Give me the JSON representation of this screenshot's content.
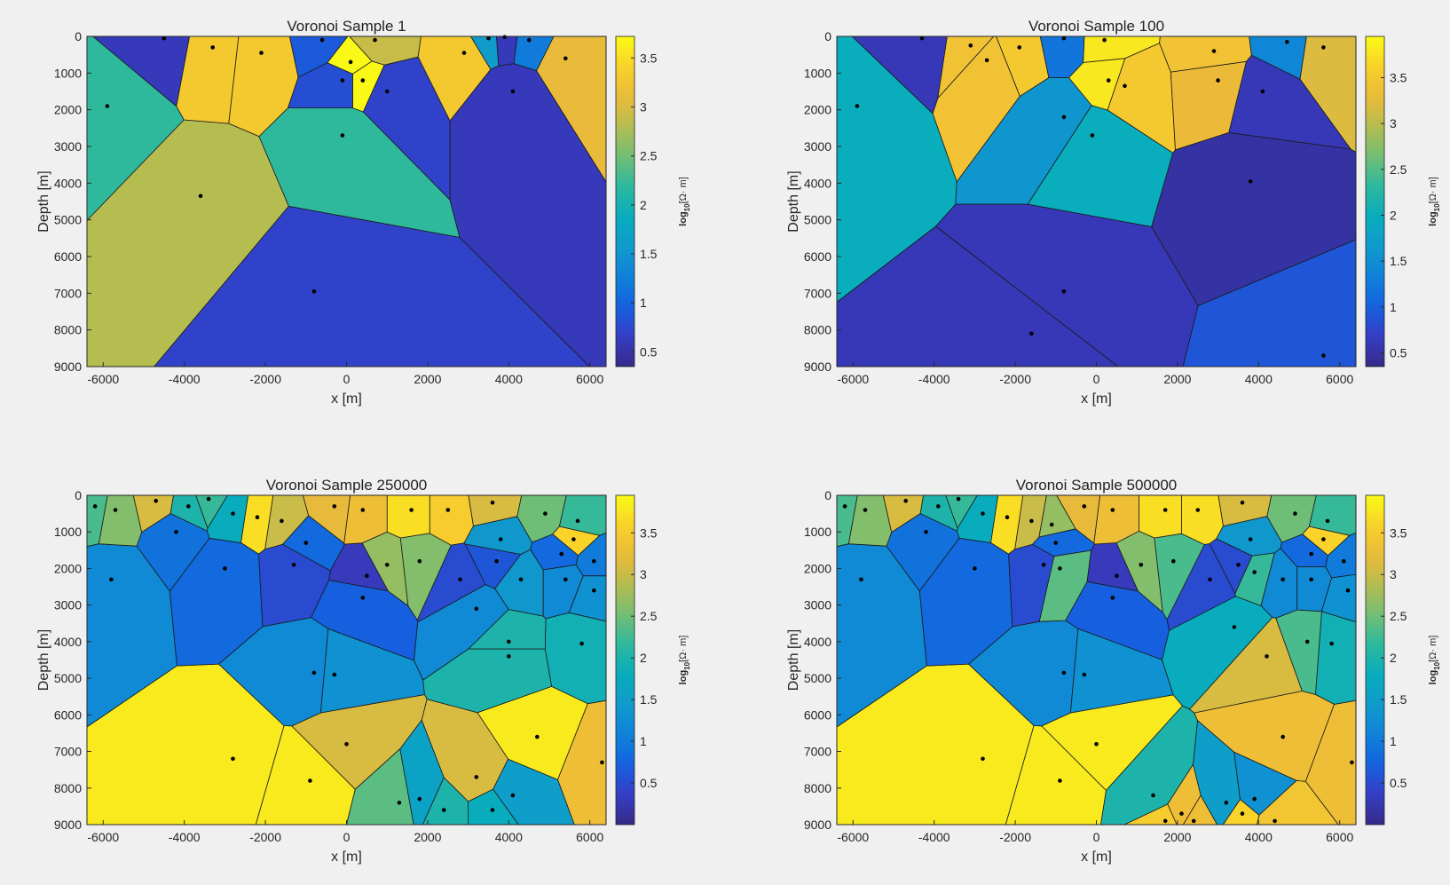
{
  "charts": [
    {
      "title": "Voronoi Sample 1",
      "colorbar_ticks": [
        "0.5",
        "1",
        "1.5",
        "2",
        "2.5",
        "3",
        "3.5"
      ],
      "cmin": 0.35,
      "cmax": 3.72
    },
    {
      "title": "Voronoi Sample 100",
      "colorbar_ticks": [
        "0.5",
        "1",
        "1.5",
        "2",
        "2.5",
        "3",
        "3.5"
      ],
      "cmin": 0.35,
      "cmax": 3.95
    },
    {
      "title": "Voronoi Sample 250000",
      "colorbar_ticks": [
        "0.5",
        "1",
        "1.5",
        "2",
        "2.5",
        "3",
        "3.5"
      ],
      "cmin": 0.0,
      "cmax": 3.95
    },
    {
      "title": "Voronoi Sample 500000",
      "colorbar_ticks": [
        "0.5",
        "1",
        "1.5",
        "2",
        "2.5",
        "3",
        "3.5"
      ],
      "cmin": 0.0,
      "cmax": 3.95
    }
  ],
  "axes": {
    "xlabel": "x [m]",
    "ylabel": "Depth [m]",
    "cbar_prefix": "log",
    "cbar_sub": "10",
    "cbar_unit": "[Ω· m]",
    "xticks": [
      -6000,
      -4000,
      -2000,
      0,
      2000,
      4000,
      6000
    ],
    "yticks": [
      0,
      1000,
      2000,
      3000,
      4000,
      5000,
      6000,
      7000,
      8000,
      9000
    ],
    "xlim": [
      -6400,
      6400
    ],
    "ylim": [
      0,
      9000
    ]
  },
  "chart_data": [
    {
      "type": "heatmap",
      "title": "Voronoi Sample 1",
      "cells": [
        [
          -5900,
          1900,
          2.2
        ],
        [
          -3600,
          4350,
          2.8
        ],
        [
          -800,
          6950,
          0.7
        ],
        [
          -100,
          2700,
          2.2
        ],
        [
          2900,
          450,
          3.3
        ],
        [
          4100,
          1500,
          0.6
        ],
        [
          5400,
          600,
          3.1
        ],
        [
          -4500,
          50,
          0.6
        ],
        [
          -3300,
          300,
          3.3
        ],
        [
          -2100,
          450,
          3.3
        ],
        [
          -600,
          100,
          0.9
        ],
        [
          400,
          1200,
          3.7
        ],
        [
          1000,
          1500,
          0.7
        ],
        [
          -100,
          1200,
          0.8
        ],
        [
          100,
          700,
          3.7
        ],
        [
          700,
          100,
          2.9
        ],
        [
          3500,
          50,
          1.6
        ],
        [
          4500,
          100,
          1.2
        ],
        [
          3900,
          20,
          0.6
        ]
      ]
    },
    {
      "type": "heatmap",
      "title": "Voronoi Sample 100",
      "cells": [
        [
          -5900,
          1900,
          2.0
        ],
        [
          -800,
          2200,
          1.6
        ],
        [
          -100,
          2700,
          2.0
        ],
        [
          3800,
          3950,
          0.5
        ],
        [
          -800,
          6950,
          0.6
        ],
        [
          -1600,
          8100,
          0.6
        ],
        [
          5600,
          8700,
          0.9
        ],
        [
          -3100,
          250,
          3.4
        ],
        [
          -2700,
          650,
          3.4
        ],
        [
          -1900,
          300,
          3.5
        ],
        [
          200,
          100,
          3.8
        ],
        [
          300,
          1200,
          3.8
        ],
        [
          700,
          1350,
          3.5
        ],
        [
          3000,
          1200,
          3.3
        ],
        [
          4100,
          1500,
          0.6
        ],
        [
          5600,
          300,
          3.2
        ],
        [
          2900,
          400,
          3.4
        ],
        [
          4700,
          150,
          1.4
        ],
        [
          -4300,
          50,
          0.6
        ],
        [
          -800,
          50,
          1.2
        ]
      ]
    },
    {
      "type": "heatmap",
      "title": "Voronoi Sample 250000",
      "cells": [
        [
          -4200,
          1000,
          0.9
        ],
        [
          -5800,
          2300,
          1.2
        ],
        [
          -2800,
          7200,
          3.8
        ],
        [
          -900,
          7800,
          3.8
        ],
        [
          0,
          6800,
          3.1
        ],
        [
          -800,
          4850,
          1.2
        ],
        [
          -300,
          4900,
          1.3
        ],
        [
          4700,
          6600,
          3.8
        ],
        [
          6300,
          7300,
          3.3
        ],
        [
          3200,
          7700,
          3.1
        ],
        [
          1300,
          8400,
          2.4
        ],
        [
          1800,
          8300,
          1.6
        ],
        [
          4100,
          8200,
          1.5
        ],
        [
          3600,
          8600,
          1.8
        ],
        [
          2400,
          8600,
          2.0
        ],
        [
          4000,
          4000,
          2.0
        ],
        [
          4000,
          4400,
          2.0
        ],
        [
          5800,
          4050,
          1.9
        ],
        [
          3200,
          3100,
          1.2
        ],
        [
          500,
          2200,
          0.3
        ],
        [
          400,
          2800,
          0.7
        ],
        [
          1000,
          1900,
          2.7
        ],
        [
          1800,
          1800,
          2.6
        ],
        [
          2800,
          2300,
          0.5
        ],
        [
          3700,
          1800,
          0.6
        ],
        [
          4300,
          2300,
          1.4
        ],
        [
          5400,
          2300,
          1.2
        ],
        [
          6100,
          2600,
          1.3
        ],
        [
          -1300,
          1900,
          0.5
        ],
        [
          -1000,
          1300,
          0.8
        ],
        [
          -3000,
          2000,
          0.8
        ],
        [
          -1600,
          700,
          3.0
        ],
        [
          2500,
          400,
          3.5
        ],
        [
          1600,
          400,
          3.7
        ],
        [
          3800,
          1200,
          1.4
        ],
        [
          5300,
          1600,
          0.8
        ],
        [
          5600,
          1200,
          3.6
        ],
        [
          4900,
          500,
          2.5
        ],
        [
          400,
          400,
          3.3
        ],
        [
          -300,
          300,
          3.2
        ],
        [
          3600,
          200,
          3.1
        ],
        [
          5700,
          700,
          2.2
        ],
        [
          6100,
          1800,
          1.0
        ],
        [
          -2800,
          500,
          1.8
        ],
        [
          -5700,
          400,
          2.6
        ],
        [
          -6200,
          300,
          2.3
        ],
        [
          -3900,
          300,
          2.0
        ],
        [
          -4700,
          150,
          3.1
        ],
        [
          -2200,
          600,
          3.7
        ],
        [
          -3400,
          100,
          2.2
        ]
      ]
    },
    {
      "type": "heatmap",
      "title": "Voronoi Sample 500000",
      "cells": [
        [
          -4200,
          1000,
          0.9
        ],
        [
          -5800,
          2300,
          1.2
        ],
        [
          -2800,
          7200,
          3.8
        ],
        [
          -900,
          7800,
          3.8
        ],
        [
          0,
          6800,
          3.8
        ],
        [
          -800,
          4850,
          1.2
        ],
        [
          -300,
          4900,
          1.3
        ],
        [
          4600,
          6600,
          3.3
        ],
        [
          6300,
          7300,
          3.3
        ],
        [
          4200,
          4400,
          3.1
        ],
        [
          3200,
          8400,
          1.5
        ],
        [
          3900,
          8300,
          1.3
        ],
        [
          1400,
          8200,
          2.0
        ],
        [
          2100,
          8700,
          3.3
        ],
        [
          1700,
          8900,
          3.5
        ],
        [
          3600,
          8700,
          3.6
        ],
        [
          4400,
          8900,
          3.4
        ],
        [
          2400,
          8900,
          3.3
        ],
        [
          5200,
          4000,
          2.3
        ],
        [
          5800,
          4050,
          1.9
        ],
        [
          3400,
          3600,
          1.8
        ],
        [
          500,
          2200,
          0.3
        ],
        [
          400,
          2800,
          0.7
        ],
        [
          1100,
          1900,
          2.6
        ],
        [
          1900,
          1800,
          2.3
        ],
        [
          2800,
          2300,
          0.5
        ],
        [
          3500,
          1900,
          0.5
        ],
        [
          3900,
          2100,
          2.2
        ],
        [
          4600,
          2300,
          1.2
        ],
        [
          5300,
          2300,
          1.2
        ],
        [
          6200,
          2600,
          1.3
        ],
        [
          -1300,
          1900,
          0.5
        ],
        [
          -1000,
          1300,
          0.8
        ],
        [
          -3000,
          2000,
          0.8
        ],
        [
          -1600,
          700,
          3.0
        ],
        [
          2500,
          400,
          3.7
        ],
        [
          1700,
          400,
          3.7
        ],
        [
          3800,
          1200,
          1.4
        ],
        [
          5300,
          1600,
          0.8
        ],
        [
          5600,
          1200,
          3.6
        ],
        [
          4900,
          500,
          2.5
        ],
        [
          400,
          400,
          3.3
        ],
        [
          -300,
          300,
          3.2
        ],
        [
          3600,
          200,
          3.1
        ],
        [
          5700,
          700,
          2.2
        ],
        [
          6100,
          1800,
          1.0
        ],
        [
          -2800,
          500,
          1.8
        ],
        [
          -5700,
          400,
          2.6
        ],
        [
          -6200,
          300,
          2.3
        ],
        [
          -3900,
          300,
          2.0
        ],
        [
          -4700,
          150,
          3.1
        ],
        [
          -2200,
          600,
          3.7
        ],
        [
          -3400,
          100,
          2.2
        ],
        [
          -1100,
          800,
          2.7
        ],
        [
          -900,
          2000,
          2.4
        ]
      ]
    }
  ]
}
